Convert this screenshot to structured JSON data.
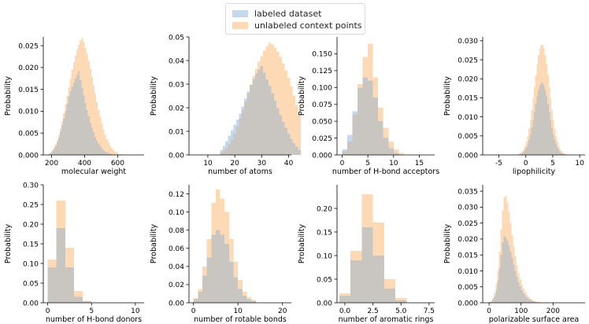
{
  "legend": {
    "labeled": "labeled dataset",
    "unlabeled": "unlabeled context points"
  },
  "colors": {
    "labeled": "#c6d9ec",
    "unlabeled": "#fdd9b5",
    "overlap": "#c9c6c2"
  },
  "chart_data": [
    {
      "type": "histogram",
      "xlabel": "molecular weight",
      "ylabel": "Probability",
      "xlim": [
        150,
        760
      ],
      "ylim": [
        0,
        0.027
      ],
      "xticks": [
        200,
        400,
        600
      ],
      "yticks": [
        0.0,
        0.005,
        0.01,
        0.015,
        0.02,
        0.025
      ],
      "ytick_labels": [
        "0.000",
        "0.005",
        "0.010",
        "0.015",
        "0.020",
        "0.025"
      ],
      "series": [
        {
          "name": "unlabeled context points",
          "x0": 180,
          "bin_width": 10,
          "values": [
            0.0003,
            0.0006,
            0.001,
            0.0016,
            0.0024,
            0.0034,
            0.0046,
            0.006,
            0.0077,
            0.0095,
            0.0115,
            0.0135,
            0.0155,
            0.0175,
            0.0195,
            0.0212,
            0.0228,
            0.024,
            0.0252,
            0.0262,
            0.0268,
            0.0258,
            0.0246,
            0.0232,
            0.0215,
            0.0197,
            0.0178,
            0.0159,
            0.014,
            0.0121,
            0.0103,
            0.0087,
            0.0072,
            0.0058,
            0.0046,
            0.0036,
            0.0028,
            0.0021,
            0.0015,
            0.0011,
            0.0008,
            0.0005,
            0.0003,
            0.0002,
            0.0001
          ]
        },
        {
          "name": "labeled dataset",
          "x0": 180,
          "bin_width": 10,
          "values": [
            0.0002,
            0.0004,
            0.0008,
            0.0013,
            0.002,
            0.0029,
            0.004,
            0.0053,
            0.0068,
            0.0084,
            0.0101,
            0.0118,
            0.0133,
            0.0146,
            0.0157,
            0.0166,
            0.0175,
            0.0183,
            0.0192,
            0.0172,
            0.0154,
            0.0136,
            0.0119,
            0.0103,
            0.0088,
            0.0074,
            0.0062,
            0.0051,
            0.0041,
            0.0033,
            0.0026,
            0.002,
            0.0015,
            0.0011,
            0.0008,
            0.0006,
            0.0004,
            0.0003,
            0.0002,
            0.0001
          ]
        }
      ]
    },
    {
      "type": "histogram",
      "xlabel": "number of atoms",
      "ylabel": "Probability",
      "xlim": [
        3,
        41
      ],
      "ylim": [
        0,
        0.05
      ],
      "xticks": [
        10,
        20,
        30,
        40
      ],
      "yticks": [
        0.0,
        0.01,
        0.02,
        0.03,
        0.04,
        0.05
      ],
      "ytick_labels": [
        "0.00",
        "0.01",
        "0.02",
        "0.03",
        "0.04",
        "0.05"
      ],
      "series": [
        {
          "name": "unlabeled context points",
          "x0": 14.5,
          "bin_width": 1,
          "values": [
            0.001,
            0.0018,
            0.003,
            0.0045,
            0.0065,
            0.009,
            0.012,
            0.0155,
            0.019,
            0.0225,
            0.0262,
            0.0298,
            0.0335,
            0.0365,
            0.0395,
            0.0418,
            0.0442,
            0.0462,
            0.0475,
            0.0468,
            0.0455,
            0.0438,
            0.0415,
            0.0388,
            0.0358,
            0.0326,
            0.029,
            0.0252,
            0.021,
            0.0168
          ]
        },
        {
          "name": "labeled dataset",
          "x0": 14.5,
          "bin_width": 1,
          "values": [
            0.0022,
            0.0038,
            0.0058,
            0.0082,
            0.0105,
            0.0128,
            0.015,
            0.0175,
            0.0205,
            0.0238,
            0.0268,
            0.0296,
            0.0322,
            0.0345,
            0.0362,
            0.0376,
            0.0348,
            0.032,
            0.0292,
            0.0262,
            0.023,
            0.0198,
            0.0168,
            0.014,
            0.0115,
            0.009,
            0.0068,
            0.005,
            0.0035,
            0.0022
          ]
        }
      ]
    },
    {
      "type": "histogram",
      "xlabel": "number of H-bond acceptors",
      "ylabel": "Probability",
      "xlim": [
        -1,
        18
      ],
      "ylim": [
        0,
        0.175
      ],
      "xticks": [
        0,
        5,
        10,
        15
      ],
      "yticks": [
        0.0,
        0.025,
        0.05,
        0.075,
        0.1,
        0.125,
        0.15
      ],
      "ytick_labels": [
        "0.000",
        "0.025",
        "0.050",
        "0.075",
        "0.100",
        "0.125",
        "0.150"
      ],
      "series": [
        {
          "name": "unlabeled context points",
          "x0": 0,
          "bin_width": 1,
          "values": [
            0.005,
            0.02,
            0.06,
            0.105,
            0.145,
            0.165,
            0.115,
            0.07,
            0.04,
            0.02,
            0.008,
            0.003
          ]
        },
        {
          "name": "labeled dataset",
          "x0": 0,
          "bin_width": 1,
          "values": [
            0.008,
            0.03,
            0.065,
            0.1,
            0.115,
            0.11,
            0.085,
            0.05,
            0.025,
            0.01,
            0.003
          ]
        }
      ]
    },
    {
      "type": "histogram",
      "xlabel": "lipophilicity",
      "ylabel": "Probability",
      "xlim": [
        -8,
        11
      ],
      "ylim": [
        0,
        0.031
      ],
      "xticks": [
        -5,
        0,
        5,
        10
      ],
      "yticks": [
        0.0,
        0.005,
        0.01,
        0.015,
        0.02,
        0.025,
        0.03
      ],
      "ytick_labels": [
        "0.000",
        "0.005",
        "0.010",
        "0.015",
        "0.020",
        "0.025",
        "0.030"
      ],
      "series": [
        {
          "name": "unlabeled context points",
          "x0": -7,
          "bin_width": 0.25,
          "gauss": {
            "mean": 3,
            "sd": 1.4,
            "peak": 0.029
          }
        },
        {
          "name": "labeled dataset",
          "x0": -7,
          "bin_width": 0.25,
          "gauss": {
            "mean": 3,
            "sd": 1.35,
            "peak": 0.019
          }
        }
      ]
    },
    {
      "type": "histogram",
      "xlabel": "number of H-bond donors",
      "ylabel": "Probability",
      "xlim": [
        -0.5,
        11
      ],
      "ylim": [
        0,
        0.3
      ],
      "xticks": [
        0,
        5,
        10
      ],
      "yticks": [
        0.0,
        0.05,
        0.1,
        0.15,
        0.2,
        0.25,
        0.3
      ],
      "ytick_labels": [
        "0.00",
        "0.05",
        "0.10",
        "0.15",
        "0.20",
        "0.25",
        "0.30"
      ],
      "series": [
        {
          "name": "unlabeled context points",
          "x0": 0,
          "bin_width": 1,
          "values": [
            0.11,
            0.26,
            0.14,
            0.03,
            0.005
          ]
        },
        {
          "name": "labeled dataset",
          "x0": 0,
          "bin_width": 1,
          "values": [
            0.09,
            0.19,
            0.09,
            0.015,
            0.003
          ]
        }
      ]
    },
    {
      "type": "histogram",
      "xlabel": "number of rotable bonds",
      "ylabel": "Probability",
      "xlim": [
        -1,
        22
      ],
      "ylim": [
        0,
        0.13
      ],
      "xticks": [
        0,
        10,
        20
      ],
      "yticks": [
        0.0,
        0.02,
        0.04,
        0.06,
        0.08,
        0.1,
        0.12
      ],
      "ytick_labels": [
        "0.00",
        "0.02",
        "0.04",
        "0.06",
        "0.08",
        "0.10",
        "0.12"
      ],
      "series": [
        {
          "name": "unlabeled context points",
          "x0": 0,
          "bin_width": 1,
          "values": [
            0.005,
            0.015,
            0.04,
            0.07,
            0.11,
            0.125,
            0.115,
            0.1,
            0.07,
            0.045,
            0.025,
            0.012,
            0.006,
            0.003
          ]
        },
        {
          "name": "labeled dataset",
          "x0": 0,
          "bin_width": 1,
          "values": [
            0.004,
            0.012,
            0.03,
            0.05,
            0.075,
            0.08,
            0.075,
            0.065,
            0.045,
            0.028,
            0.015,
            0.008,
            0.004,
            0.002
          ]
        }
      ]
    },
    {
      "type": "histogram",
      "xlabel": "number of aromatic rings",
      "ylabel": "Probability",
      "xlim": [
        -0.7,
        8
      ],
      "ylim": [
        0,
        0.25
      ],
      "xticks": [
        0,
        2.5,
        5,
        7.5
      ],
      "tick_labels_x": [
        "0.0",
        "2.5",
        "5.0",
        "7.5"
      ],
      "yticks": [
        0.0,
        0.05,
        0.1,
        0.15,
        0.2
      ],
      "ytick_labels": [
        "0.00",
        "0.05",
        "0.10",
        "0.15",
        "0.20"
      ],
      "series": [
        {
          "name": "unlabeled context points",
          "x0": -0.5,
          "bin_width": 1,
          "values": [
            0.02,
            0.11,
            0.23,
            0.17,
            0.05,
            0.01
          ]
        },
        {
          "name": "labeled dataset",
          "x0": -0.5,
          "bin_width": 1,
          "values": [
            0.015,
            0.09,
            0.16,
            0.1,
            0.03,
            0.005
          ]
        }
      ]
    },
    {
      "type": "histogram",
      "xlabel": "polarizable surface area",
      "ylabel": "Probability",
      "xlim": [
        -20,
        300
      ],
      "ylim": [
        0,
        0.037
      ],
      "xticks": [
        0,
        100,
        200
      ],
      "yticks": [
        0.0,
        0.005,
        0.01,
        0.015,
        0.02,
        0.025,
        0.03,
        0.035
      ],
      "ytick_labels": [
        "0.000",
        "0.005",
        "0.010",
        "0.015",
        "0.020",
        "0.025",
        "0.030",
        "0.035"
      ],
      "series": [
        {
          "name": "unlabeled context points",
          "x0": 0,
          "bin_width": 5,
          "values": [
            0.0002,
            0.0006,
            0.0015,
            0.003,
            0.006,
            0.01,
            0.016,
            0.023,
            0.029,
            0.033,
            0.0335,
            0.0315,
            0.0285,
            0.025,
            0.0212,
            0.0178,
            0.0146,
            0.0118,
            0.0094,
            0.0074,
            0.0058,
            0.0045,
            0.0034,
            0.0026,
            0.002,
            0.0015,
            0.0011,
            0.0008,
            0.0006,
            0.0004,
            0.0003,
            0.0002,
            0.0001
          ]
        },
        {
          "name": "labeled dataset",
          "x0": 0,
          "bin_width": 5,
          "values": [
            0.0001,
            0.0004,
            0.001,
            0.002,
            0.004,
            0.007,
            0.011,
            0.015,
            0.019,
            0.021,
            0.0205,
            0.0195,
            0.018,
            0.016,
            0.014,
            0.012,
            0.01,
            0.008,
            0.0064,
            0.005,
            0.0039,
            0.003,
            0.0023,
            0.0017,
            0.0013,
            0.001,
            0.0007,
            0.0005,
            0.0003,
            0.0002,
            0.0001
          ]
        }
      ]
    }
  ]
}
